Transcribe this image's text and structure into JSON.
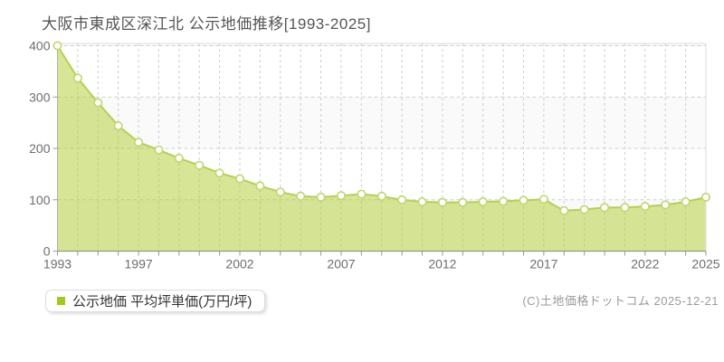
{
  "title": "大阪市東成区深江北 公示地価推移[1993-2025]",
  "legend": {
    "marker_color": "#a3c816",
    "label": "公示地価 平均坪単価(万円/坪)"
  },
  "copyright": "(C)土地価格ドットコム 2025-12-21",
  "chart_data": {
    "type": "area",
    "title": "大阪市東成区深江北 公示地価推移[1993-2025]",
    "series_name": "公示地価 平均坪単価(万円/坪)",
    "xlabel": "",
    "ylabel": "万円/坪",
    "x": [
      1993,
      1994,
      1995,
      1996,
      1997,
      1998,
      1999,
      2000,
      2001,
      2002,
      2003,
      2004,
      2005,
      2006,
      2007,
      2008,
      2009,
      2010,
      2011,
      2012,
      2013,
      2014,
      2015,
      2016,
      2017,
      2018,
      2019,
      2020,
      2021,
      2022,
      2023,
      2024,
      2025
    ],
    "values": [
      400,
      337,
      289,
      244,
      212,
      197,
      181,
      167,
      152,
      141,
      127,
      115,
      107,
      105,
      108,
      111,
      107,
      100,
      96,
      95,
      95,
      96,
      97,
      99,
      101,
      79,
      81,
      85,
      85,
      87,
      90,
      96,
      105
    ],
    "ylim": [
      0,
      400
    ],
    "y_ticks": [
      0,
      100,
      200,
      300,
      400
    ],
    "x_tick_labels": [
      1993,
      1997,
      2002,
      2007,
      2012,
      2017,
      2022,
      2025
    ],
    "grid": "dashed",
    "legend_position": "bottom-left",
    "colors": {
      "area_fill": "rgba(175,205,45,0.5)",
      "area_fill_hex": "#d8e78e",
      "line": "#b5d14d",
      "marker_fill": "#ffffff",
      "marker_stroke": "#c0d767",
      "grid_line": "#cfcfcf",
      "band_gray": "#fafafa",
      "band_white": "#ffffff",
      "axis_x": "#999999",
      "axis_y": "#b0b0b0",
      "plot_border": "#dddddd",
      "tick_text": "#6e6e6e"
    }
  }
}
